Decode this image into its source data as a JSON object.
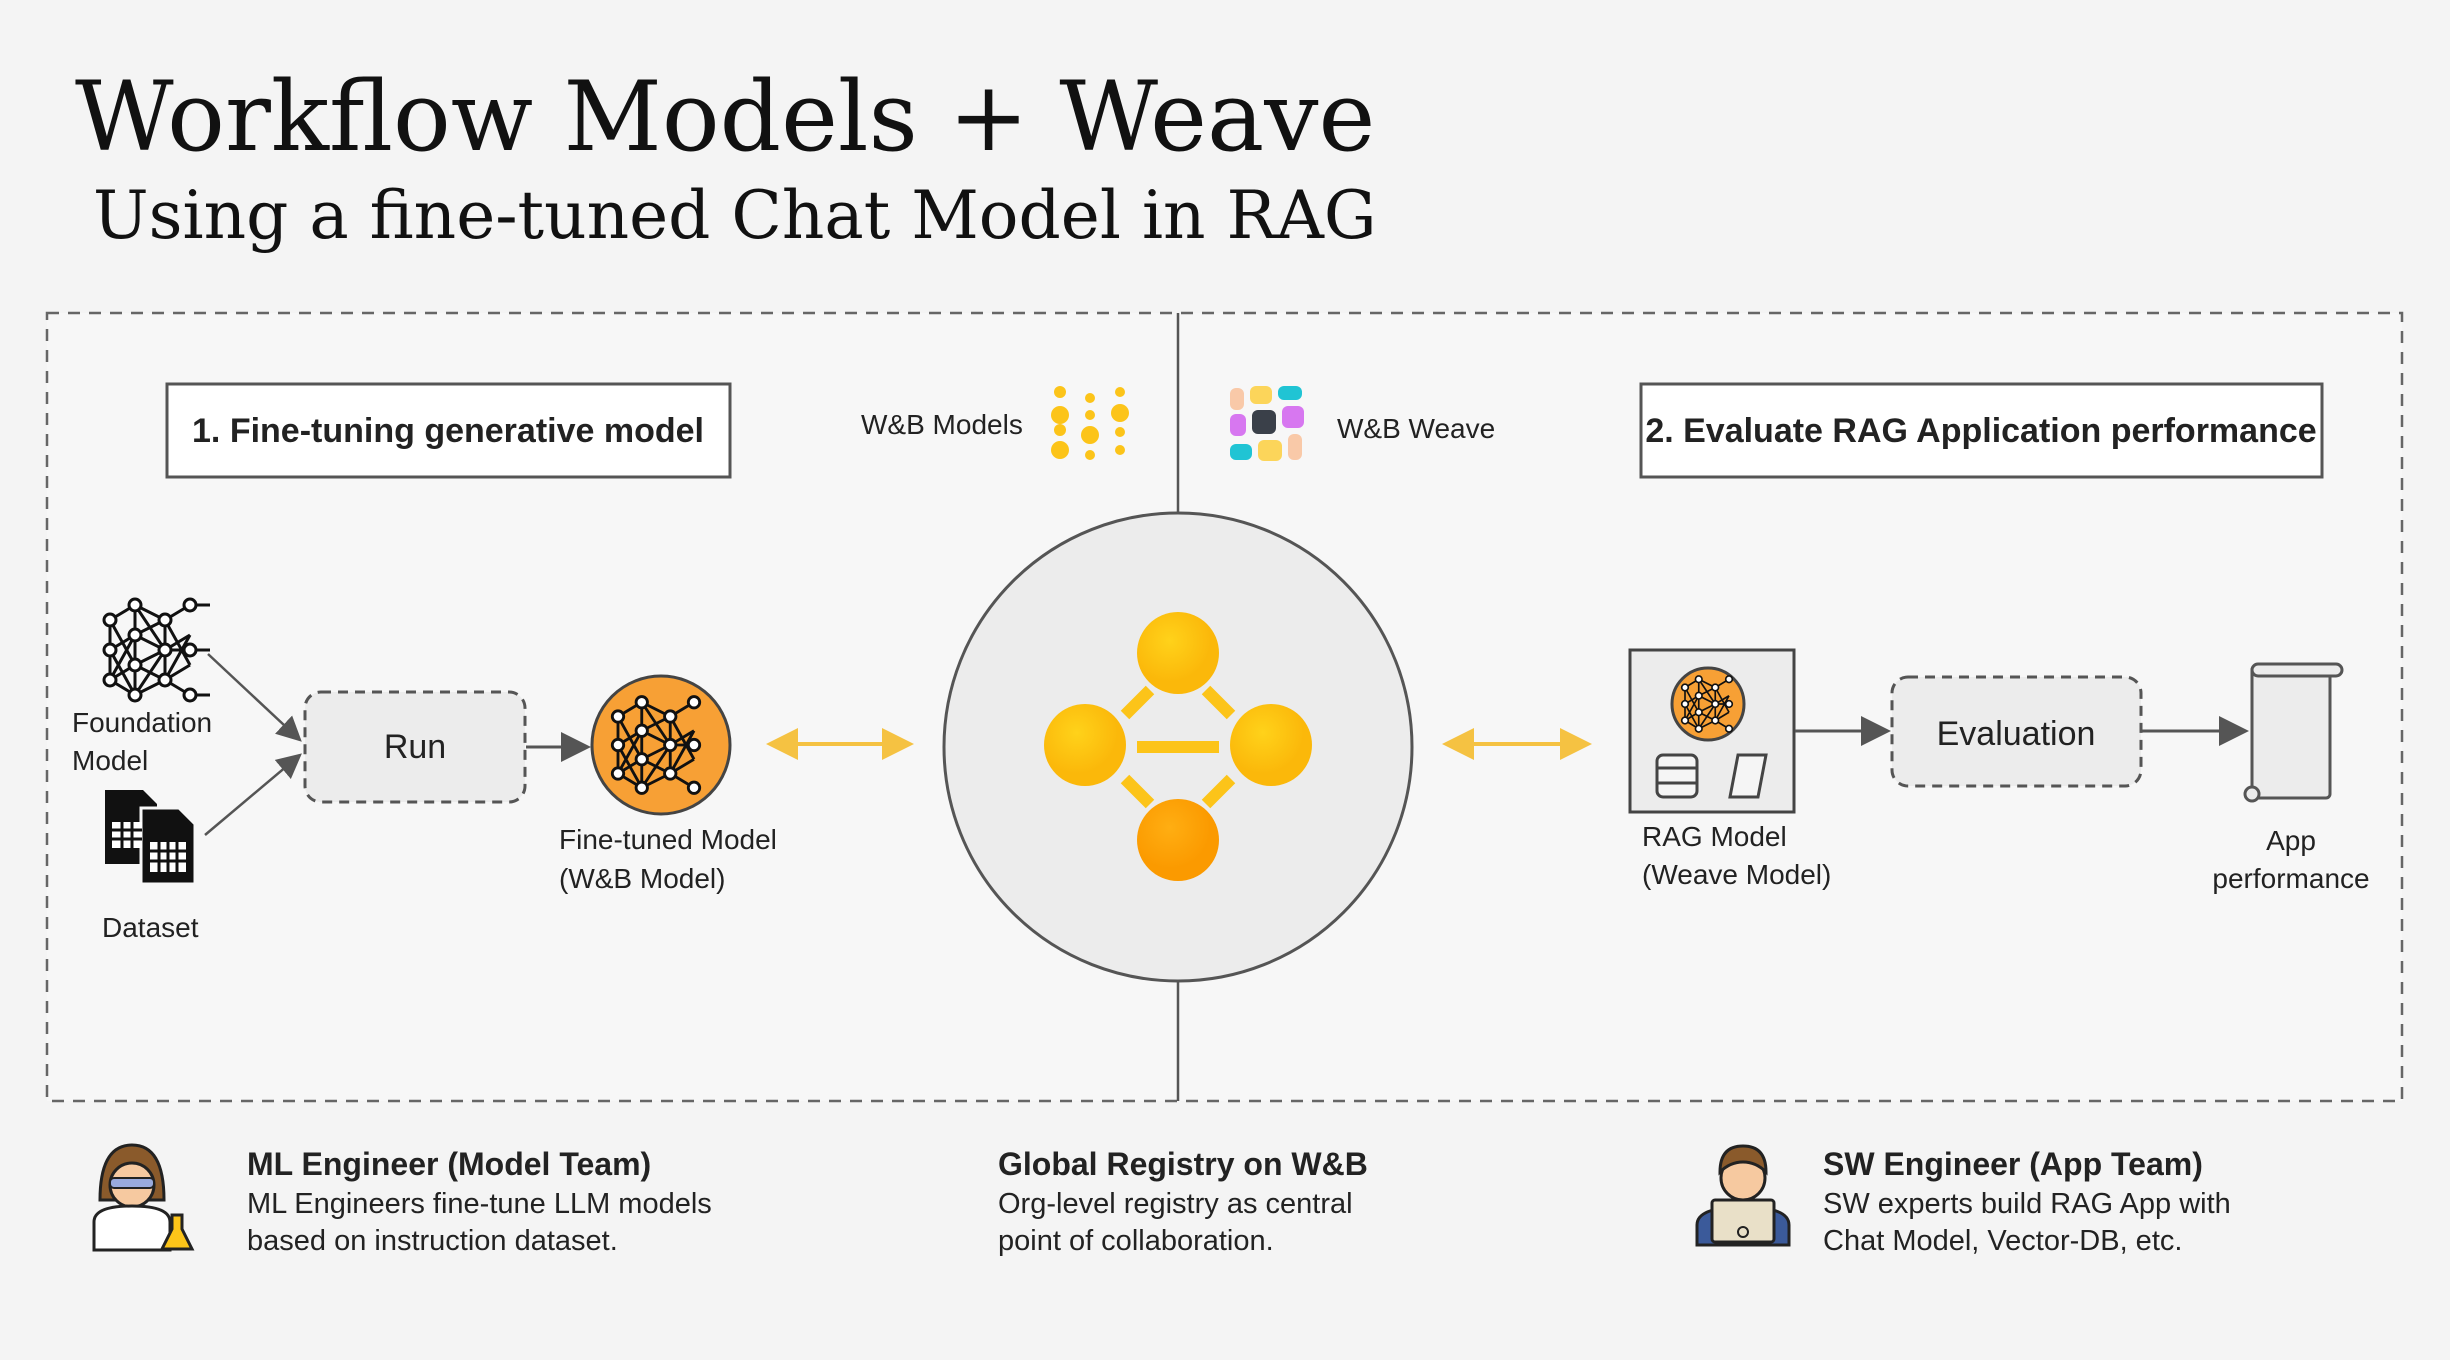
{
  "header": {
    "title": "Workflow Models + Weave",
    "subtitle": "Using a fine-tuned Chat Model in RAG"
  },
  "left_panel": {
    "heading": "1. Fine-tuning generative model",
    "brand_label": "W&B Models",
    "foundation_label_1": "Foundation",
    "foundation_label_2": "Model",
    "dataset_label": "Dataset",
    "run_label": "Run",
    "finetuned_label_1": "Fine-tuned Model",
    "finetuned_label_2": "(W&B Model)"
  },
  "right_panel": {
    "heading": "2. Evaluate RAG Application performance",
    "brand_label": "W&B Weave",
    "rag_label_1": "RAG Model",
    "rag_label_2": "(Weave Model)",
    "evaluation_label": "Evaluation",
    "app_label_1": "App",
    "app_label_2": "performance"
  },
  "footer": {
    "ml": {
      "title": "ML Engineer (Model Team)",
      "line1": "ML Engineers fine-tune LLM models",
      "line2": "based on instruction dataset."
    },
    "registry": {
      "title": "Global Registry on W&B",
      "line1": "Org-level registry as central",
      "line2": "point of collaboration."
    },
    "sw": {
      "title": "SW Engineer (App Team)",
      "line1": "SW experts build RAG App with",
      "line2": "Chat Model, Vector-DB, etc."
    }
  },
  "colors": {
    "accent_yellow": "#fcc419",
    "accent_orange": "#f7a035",
    "arrow_yellow": "#f5c242",
    "weave_pink": "#d777f0",
    "weave_teal": "#20c4d4"
  }
}
